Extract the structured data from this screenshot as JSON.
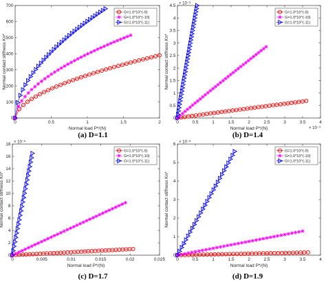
{
  "colors": {
    "s0": "#ff0000",
    "s1": "#ff00ff",
    "s2": "#0000ff"
  },
  "chart_data": [
    {
      "type": "scatter",
      "caption": "(a) D=1.1",
      "xlabel": "Normal load P*/(N)",
      "ylabel": "Normal contact stiffness Kn*",
      "xlim": [
        0,
        2
      ],
      "ylim": [
        0,
        700
      ],
      "xticks": [
        "0",
        "0.5",
        "1",
        "1.5",
        "2"
      ],
      "xtick_vals": [
        0,
        0.5,
        1,
        1.5,
        2
      ],
      "yticks": [
        "0",
        "100",
        "200",
        "300",
        "400",
        "500",
        "600",
        "700"
      ],
      "ytick_vals": [
        0,
        100,
        200,
        300,
        400,
        500,
        600,
        700
      ],
      "xmult": "",
      "ymult": "",
      "grid": false,
      "legend": "top-right",
      "series": [
        {
          "name": "G=1.0*10^(-9)",
          "marker": "circle",
          "x_end": 2.0,
          "y_end": 390,
          "curve": 0.55,
          "n": 36
        },
        {
          "name": "G=1.0*10^(-10)",
          "marker": "star",
          "x_end": 1.6,
          "y_end": 515,
          "curve": 0.55,
          "n": 36
        },
        {
          "name": "G=1.0*10^(-11)",
          "marker": "triangle",
          "x_end": 1.25,
          "y_end": 680,
          "curve": 0.55,
          "n": 36
        }
      ]
    },
    {
      "type": "scatter",
      "caption": "(b) D=1.4",
      "xlabel": "Normal load P*/(N)",
      "ylabel": "Normal contact stiffness Kn*",
      "xlim": [
        0,
        4
      ],
      "ylim": [
        0,
        4.5
      ],
      "xticks": [
        "0",
        "0.5",
        "1",
        "1.5",
        "2",
        "2.5",
        "3",
        "3.5",
        "4"
      ],
      "xtick_vals": [
        0,
        0.5,
        1,
        1.5,
        2,
        2.5,
        3,
        3.5,
        4
      ],
      "yticks": [
        "0",
        "0.5",
        "1",
        "1.5",
        "2",
        "2.5",
        "3",
        "3.5",
        "4",
        "4.5"
      ],
      "ytick_vals": [
        0,
        0.5,
        1,
        1.5,
        2,
        2.5,
        3,
        3.5,
        4,
        4.5
      ],
      "xmult": "× 10⁻³",
      "ymult": "× 10⁻³",
      "grid": false,
      "legend": "top-right",
      "series": [
        {
          "name": "G=1.0*10^(-9)",
          "marker": "circle",
          "x_end": 3.6,
          "y_end": 0.68,
          "curve": 0.97,
          "n": 36
        },
        {
          "name": "G=1.0*10^(-10)",
          "marker": "star",
          "x_end": 2.48,
          "y_end": 2.85,
          "curve": 0.97,
          "n": 36
        },
        {
          "name": "G=1.0*10^(-11)",
          "marker": "triangle",
          "x_end": 0.55,
          "y_end": 4.5,
          "curve": 0.97,
          "n": 36
        }
      ]
    },
    {
      "type": "scatter",
      "caption": "(c) D=1.7",
      "xlabel": "Normal load P*/(N)",
      "ylabel": "Normal contact stiffness Kn*",
      "xlim": [
        0,
        0.025
      ],
      "ylim": [
        0,
        18
      ],
      "xticks": [
        "0",
        "0.005",
        "0.01",
        "0.015",
        "0.02",
        "0.025"
      ],
      "xtick_vals": [
        0,
        0.005,
        0.01,
        0.015,
        0.02,
        0.025
      ],
      "yticks": [
        "0",
        "2",
        "4",
        "6",
        "8",
        "10",
        "12",
        "14",
        "16",
        "18"
      ],
      "ytick_vals": [
        0,
        2,
        4,
        6,
        8,
        10,
        12,
        14,
        16,
        18
      ],
      "xmult": "",
      "ymult": "× 10⁻⁶",
      "grid": false,
      "legend": "top-right",
      "series": [
        {
          "name": "G=1.0*10^(-9)",
          "marker": "circle",
          "x_end": 0.0205,
          "y_end": 1.0,
          "curve": 1.0,
          "n": 36
        },
        {
          "name": "G=1.0*10^(-10)",
          "marker": "star",
          "x_end": 0.0192,
          "y_end": 8.5,
          "curve": 1.0,
          "n": 36
        },
        {
          "name": "G=1.0*10^(-11)",
          "marker": "triangle",
          "x_end": 0.0034,
          "y_end": 16.5,
          "curve": 1.0,
          "n": 24
        }
      ]
    },
    {
      "type": "scatter",
      "caption": "(d) D=1.9",
      "xlabel": "Normal load P*/(N)",
      "ylabel": "Normal contact stiffness Kn*",
      "xlim": [
        0,
        4
      ],
      "ylim": [
        0,
        6
      ],
      "xticks": [
        "0",
        "0.5",
        "1",
        "1.5",
        "2",
        "2.5",
        "3",
        "3.5",
        "4"
      ],
      "xtick_vals": [
        0,
        0.5,
        1,
        1.5,
        2,
        2.5,
        3,
        3.5,
        4
      ],
      "yticks": [
        "0",
        "1",
        "2",
        "3",
        "4",
        "5",
        "6"
      ],
      "ytick_vals": [
        0,
        1,
        2,
        3,
        4,
        5,
        6
      ],
      "xmult": "",
      "ymult": "× 10⁻⁸",
      "grid": false,
      "legend": "top-right",
      "series": [
        {
          "name": "G=1.0*10^(-9)",
          "marker": "circle",
          "x_end": 3.65,
          "y_end": 0.15,
          "curve": 1.0,
          "n": 36
        },
        {
          "name": "G=1.0*10^(-10)",
          "marker": "star",
          "x_end": 3.5,
          "y_end": 1.3,
          "curve": 1.0,
          "n": 36
        },
        {
          "name": "G=1.0*10^(-11)",
          "marker": "triangle",
          "x_end": 1.6,
          "y_end": 5.6,
          "curve": 1.0,
          "n": 28
        }
      ]
    }
  ]
}
